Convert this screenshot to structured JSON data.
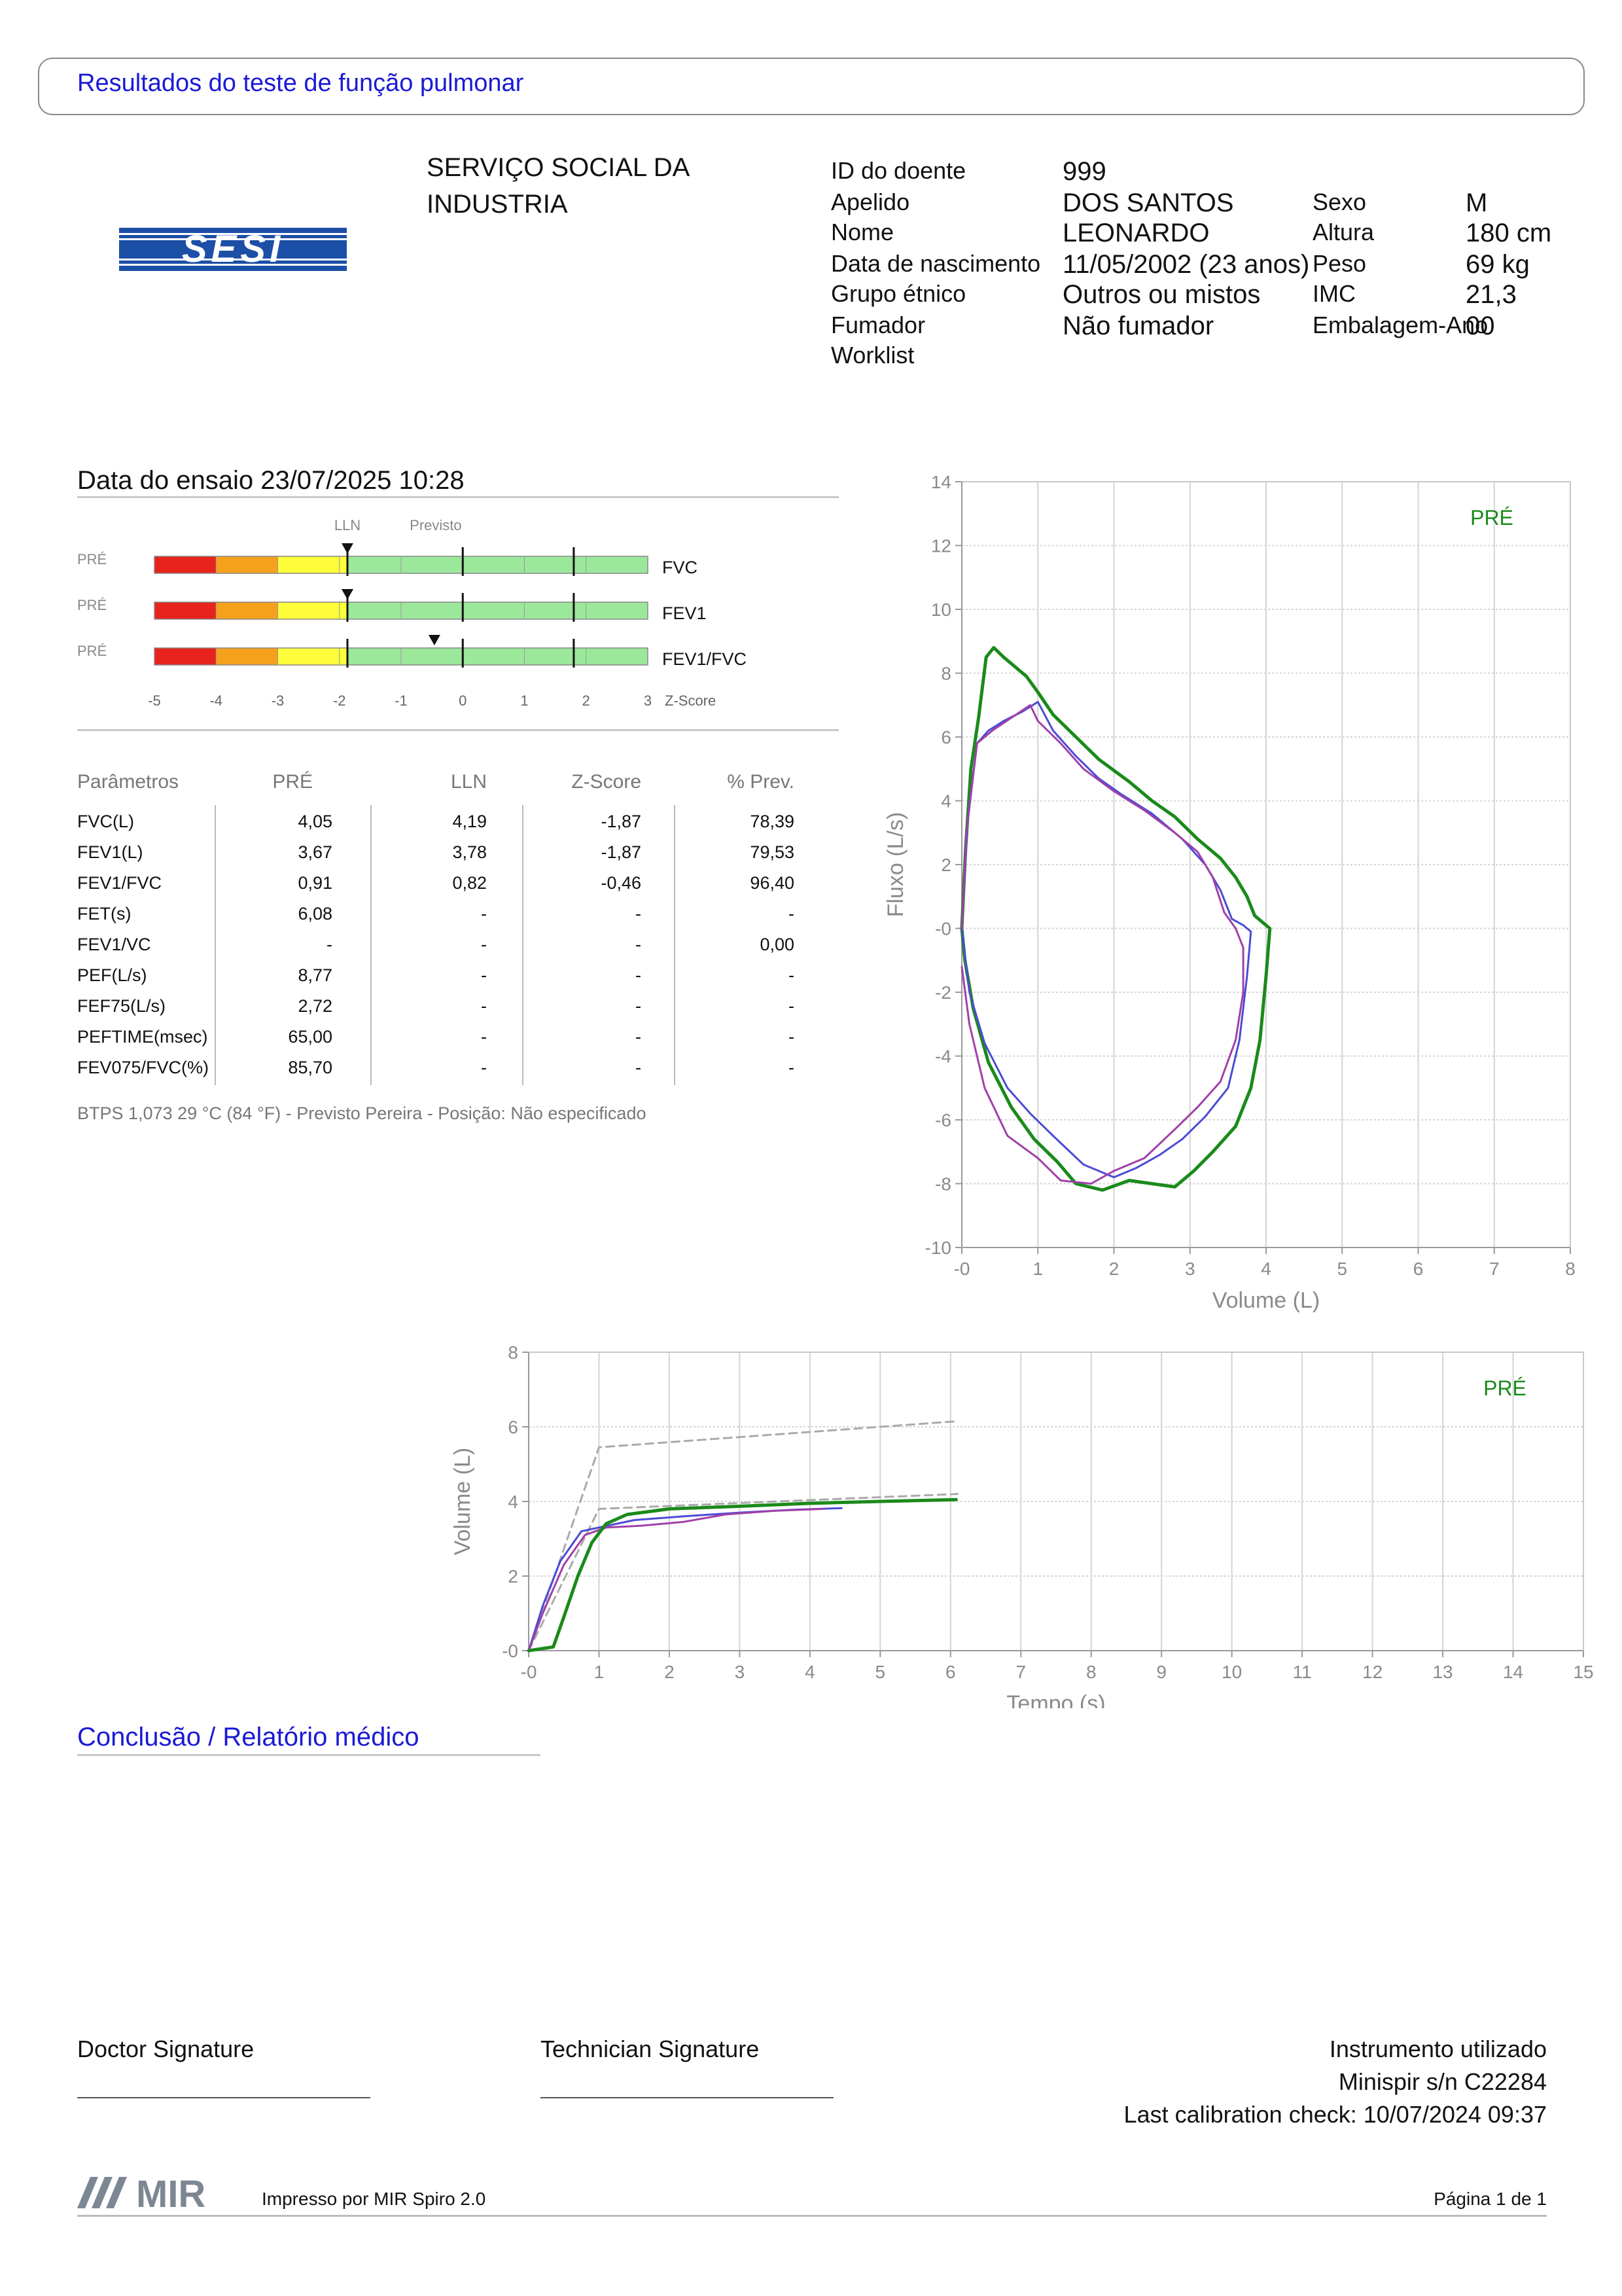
{
  "header": {
    "title": "Resultados do teste de função pulmonar"
  },
  "org": {
    "line1": "SERVIÇO SOCIAL DA",
    "line2": "INDUSTRIA",
    "logo_text": "SESI"
  },
  "patient": {
    "id_label": "ID do doente",
    "id_value": "999",
    "surname_label": "Apelido",
    "surname_value": "DOS SANTOS",
    "name_label": "Nome",
    "name_value": "LEONARDO",
    "dob_label": "Data de nascimento",
    "dob_value": "11/05/2002 (23 anos)",
    "ethnic_label": "Grupo étnico",
    "ethnic_value": "Outros ou mistos",
    "smoker_label": "Fumador",
    "smoker_value": "Não fumador",
    "worklist_label": "Worklist",
    "sex_label": "Sexo",
    "sex_value": "M",
    "height_label": "Altura",
    "height_value": "180 cm",
    "weight_label": "Peso",
    "weight_value": "69 kg",
    "bmi_label": "IMC",
    "bmi_value": "21,3",
    "pack_label": "Embalagem-Ano",
    "pack_value": "00"
  },
  "test": {
    "date_text": "Data do ensaio 23/07/2025 10:28"
  },
  "zscore": {
    "lln_label": "LLN",
    "pred_label": "Previsto",
    "axis_label": "Z-Score",
    "ticks": [
      "-5",
      "-4",
      "-3",
      "-2",
      "-1",
      "0",
      "1",
      "2",
      "3"
    ],
    "rows": [
      {
        "tag": "PRÉ",
        "name": "FVC",
        "z": -1.87
      },
      {
        "tag": "PRÉ",
        "name": "FEV1",
        "z": -1.87
      },
      {
        "tag": "PRÉ",
        "name": "FEV1/FVC",
        "z": -0.46
      }
    ],
    "colors": {
      "red": "#e8231d",
      "orange": "#f5a11c",
      "yellow": "#fdfd3a",
      "green": "#9be89b"
    }
  },
  "table": {
    "headers": [
      "Parâmetros",
      "PRÉ",
      "LLN",
      "Z-Score",
      "% Prev."
    ],
    "rows": [
      [
        "FVC(L)",
        "4,05",
        "4,19",
        "-1,87",
        "78,39"
      ],
      [
        "FEV1(L)",
        "3,67",
        "3,78",
        "-1,87",
        "79,53"
      ],
      [
        "FEV1/FVC",
        "0,91",
        "0,82",
        "-0,46",
        "96,40"
      ],
      [
        "FET(s)",
        "6,08",
        "-",
        "-",
        "-"
      ],
      [
        "FEV1/VC",
        "-",
        "-",
        "-",
        "0,00"
      ],
      [
        "PEF(L/s)",
        "8,77",
        "-",
        "-",
        "-"
      ],
      [
        "FEF75(L/s)",
        "2,72",
        "-",
        "-",
        "-"
      ],
      [
        "PEFTIME(msec)",
        "65,00",
        "-",
        "-",
        "-"
      ],
      [
        "FEV075/FVC(%)",
        "85,70",
        "-",
        "-",
        "-"
      ]
    ],
    "note": "BTPS 1,073 29 °C (84 °F) - Previsto Pereira - Posição: Não especificado"
  },
  "chart_data": [
    {
      "type": "line",
      "xlabel": "Volume (L)",
      "ylabel": "Fluxo (L/s)",
      "xlim": [
        0,
        8
      ],
      "ylim": [
        -10,
        14
      ],
      "xticks": [
        "-0",
        "1",
        "2",
        "3",
        "4",
        "5",
        "6",
        "7",
        "8"
      ],
      "yticks": [
        "14",
        "12",
        "10",
        "8",
        "6",
        "4",
        "2",
        "-0",
        "-2",
        "-4",
        "-6",
        "-8",
        "-10"
      ],
      "grid": true,
      "legend": "PRÉ",
      "series": [
        {
          "color": "#1a8a1a",
          "width": 5,
          "points": [
            [
              0,
              0
            ],
            [
              0.05,
              2.5
            ],
            [
              0.12,
              5
            ],
            [
              0.22,
              6.6
            ],
            [
              0.32,
              8.5
            ],
            [
              0.42,
              8.8
            ],
            [
              0.55,
              8.5
            ],
            [
              0.7,
              8.2
            ],
            [
              0.85,
              7.9
            ],
            [
              1.0,
              7.4
            ],
            [
              1.2,
              6.7
            ],
            [
              1.5,
              6.0
            ],
            [
              1.8,
              5.3
            ],
            [
              2.2,
              4.6
            ],
            [
              2.5,
              4.0
            ],
            [
              2.8,
              3.5
            ],
            [
              3.1,
              2.8
            ],
            [
              3.4,
              2.2
            ],
            [
              3.6,
              1.6
            ],
            [
              3.75,
              1.0
            ],
            [
              3.85,
              0.4
            ],
            [
              3.95,
              0.2
            ],
            [
              4.05,
              0.0
            ],
            [
              4.0,
              -1.5
            ],
            [
              3.92,
              -3.5
            ],
            [
              3.8,
              -5.0
            ],
            [
              3.6,
              -6.2
            ],
            [
              3.3,
              -7.0
            ],
            [
              3.05,
              -7.6
            ],
            [
              2.8,
              -8.1
            ],
            [
              2.5,
              -8.0
            ],
            [
              2.2,
              -7.9
            ],
            [
              1.85,
              -8.2
            ],
            [
              1.5,
              -8.0
            ],
            [
              1.25,
              -7.3
            ],
            [
              0.95,
              -6.6
            ],
            [
              0.65,
              -5.6
            ],
            [
              0.35,
              -4.2
            ],
            [
              0.15,
              -2.5
            ],
            [
              0.04,
              -1.0
            ],
            [
              0,
              0
            ]
          ]
        },
        {
          "color": "#4b4bd6",
          "width": 3,
          "points": [
            [
              0,
              0
            ],
            [
              0.08,
              3.5
            ],
            [
              0.2,
              5.8
            ],
            [
              0.35,
              6.2
            ],
            [
              0.55,
              6.5
            ],
            [
              0.8,
              6.8
            ],
            [
              1.0,
              7.1
            ],
            [
              1.2,
              6.2
            ],
            [
              1.5,
              5.4
            ],
            [
              1.8,
              4.7
            ],
            [
              2.1,
              4.2
            ],
            [
              2.5,
              3.6
            ],
            [
              2.9,
              2.8
            ],
            [
              3.2,
              2.0
            ],
            [
              3.4,
              1.2
            ],
            [
              3.55,
              0.3
            ],
            [
              3.7,
              0.1
            ],
            [
              3.8,
              -0.1
            ],
            [
              3.75,
              -1.5
            ],
            [
              3.65,
              -3.5
            ],
            [
              3.5,
              -5.0
            ],
            [
              3.2,
              -5.9
            ],
            [
              2.9,
              -6.6
            ],
            [
              2.6,
              -7.1
            ],
            [
              2.3,
              -7.5
            ],
            [
              2.0,
              -7.8
            ],
            [
              1.6,
              -7.4
            ],
            [
              1.2,
              -6.5
            ],
            [
              0.9,
              -5.8
            ],
            [
              0.6,
              -5.0
            ],
            [
              0.3,
              -3.6
            ],
            [
              0.1,
              -2.0
            ],
            [
              0,
              0
            ]
          ]
        },
        {
          "color": "#a040a8",
          "width": 3,
          "points": [
            [
              0,
              0
            ],
            [
              0.06,
              3.0
            ],
            [
              0.2,
              5.8
            ],
            [
              0.4,
              6.2
            ],
            [
              0.65,
              6.6
            ],
            [
              0.9,
              7.0
            ],
            [
              1.0,
              6.5
            ],
            [
              1.3,
              5.8
            ],
            [
              1.6,
              5.0
            ],
            [
              2.0,
              4.3
            ],
            [
              2.4,
              3.7
            ],
            [
              2.8,
              3.0
            ],
            [
              3.1,
              2.4
            ],
            [
              3.3,
              1.6
            ],
            [
              3.45,
              0.5
            ],
            [
              3.6,
              0.0
            ],
            [
              3.7,
              -0.6
            ],
            [
              3.7,
              -2.0
            ],
            [
              3.6,
              -3.5
            ],
            [
              3.4,
              -4.8
            ],
            [
              3.1,
              -5.6
            ],
            [
              2.8,
              -6.3
            ],
            [
              2.4,
              -7.2
            ],
            [
              2.0,
              -7.6
            ],
            [
              1.7,
              -8.0
            ],
            [
              1.3,
              -7.9
            ],
            [
              1.0,
              -7.2
            ],
            [
              0.6,
              -6.5
            ],
            [
              0.3,
              -5.0
            ],
            [
              0.1,
              -3.0
            ],
            [
              0,
              -1.2
            ]
          ]
        }
      ]
    },
    {
      "type": "line",
      "xlabel": "Tempo (s)",
      "ylabel": "Volume (L)",
      "xlim": [
        0,
        15
      ],
      "ylim": [
        0,
        8
      ],
      "xticks": [
        "-0",
        "1",
        "2",
        "3",
        "4",
        "5",
        "6",
        "7",
        "8",
        "9",
        "10",
        "11",
        "12",
        "13",
        "14",
        "15"
      ],
      "yticks": [
        "8",
        "6",
        "4",
        "2",
        "-0"
      ],
      "grid": true,
      "legend": "PRÉ",
      "series": [
        {
          "color": "#aaaaaa",
          "width": 3,
          "dash": true,
          "points": [
            [
              0,
              0
            ],
            [
              1.0,
              5.45
            ],
            [
              6.1,
              6.15
            ]
          ]
        },
        {
          "color": "#aaaaaa",
          "width": 3,
          "dash": true,
          "points": [
            [
              0,
              0
            ],
            [
              1.0,
              3.8
            ],
            [
              6.1,
              4.2
            ]
          ]
        },
        {
          "color": "#4b4bd6",
          "width": 3,
          "points": [
            [
              0,
              0
            ],
            [
              0.2,
              1.2
            ],
            [
              0.45,
              2.4
            ],
            [
              0.75,
              3.2
            ],
            [
              1.0,
              3.3
            ],
            [
              1.5,
              3.5
            ],
            [
              2.2,
              3.6
            ],
            [
              3.0,
              3.7
            ],
            [
              3.8,
              3.78
            ],
            [
              4.45,
              3.82
            ]
          ]
        },
        {
          "color": "#a040a8",
          "width": 3,
          "points": [
            [
              0,
              0
            ],
            [
              0.2,
              1.0
            ],
            [
              0.5,
              2.3
            ],
            [
              0.8,
              3.1
            ],
            [
              1.1,
              3.3
            ],
            [
              1.6,
              3.35
            ],
            [
              2.2,
              3.45
            ],
            [
              2.8,
              3.65
            ],
            [
              3.5,
              3.75
            ],
            [
              4.2,
              3.8
            ]
          ]
        },
        {
          "color": "#1a8a1a",
          "width": 5,
          "points": [
            [
              0,
              0
            ],
            [
              0.35,
              0.1
            ],
            [
              0.5,
              0.9
            ],
            [
              0.7,
              2.0
            ],
            [
              0.9,
              2.9
            ],
            [
              1.1,
              3.4
            ],
            [
              1.4,
              3.65
            ],
            [
              2.0,
              3.8
            ],
            [
              3.0,
              3.87
            ],
            [
              4.0,
              3.95
            ],
            [
              5.0,
              4.0
            ],
            [
              6.08,
              4.05
            ]
          ]
        }
      ]
    }
  ],
  "conclusion": {
    "title": "Conclusão / Relatório médico"
  },
  "signatures": {
    "doctor": "Doctor Signature",
    "technician": "Technician Signature"
  },
  "instrument": {
    "line1": "Instrumento utilizado",
    "line2": "Minispir s/n C22284",
    "line3": "Last calibration check: 10/07/2024 09:37"
  },
  "footer": {
    "logo_text": "MIR",
    "printed_by": "Impresso por MIR Spiro 2.0",
    "page": "Página 1 de 1"
  }
}
